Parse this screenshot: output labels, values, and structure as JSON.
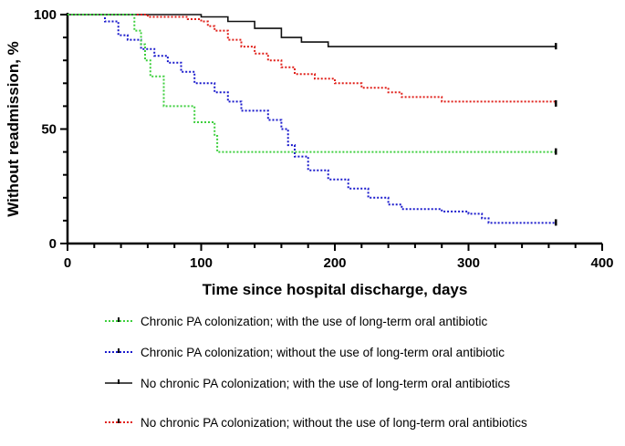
{
  "chart_data": {
    "type": "line",
    "title": "",
    "xlabel": "Time since hospital discharge, days",
    "ylabel": "Without readmission, %",
    "xlim": [
      0,
      400
    ],
    "ylim": [
      0,
      100
    ],
    "xticks": [
      0,
      100,
      200,
      300,
      400
    ],
    "yticks": [
      0,
      50,
      100
    ],
    "grid": false,
    "legend_position": "bottom",
    "series": [
      {
        "name": "Chronic PA colonization; with the use of long-term oral antibiotic",
        "color": "#3ecf3e",
        "style": "dotted",
        "x": [
          0,
          35,
          50,
          55,
          58,
          62,
          72,
          95,
          110,
          112,
          113,
          365
        ],
        "y": [
          100,
          100,
          93,
          87,
          80,
          73,
          60,
          53,
          47,
          40,
          40,
          40
        ]
      },
      {
        "name": "Chronic PA colonization; without the use of long-term oral antibiotic",
        "color": "#1a1acc",
        "style": "dotted",
        "x": [
          0,
          28,
          38,
          45,
          55,
          65,
          75,
          85,
          95,
          110,
          120,
          130,
          150,
          160,
          165,
          170,
          180,
          195,
          210,
          225,
          240,
          250,
          280,
          300,
          310,
          315,
          365
        ],
        "y": [
          100,
          97,
          91,
          89,
          85,
          82,
          79,
          75,
          70,
          66,
          62,
          58,
          54,
          50,
          43,
          38,
          32,
          28,
          24,
          20,
          17,
          15,
          14,
          13,
          11,
          9,
          9
        ]
      },
      {
        "name": "No chronic PA colonization; with the use of long-term oral antibiotics",
        "color": "#111111",
        "style": "solid",
        "x": [
          0,
          100,
          120,
          140,
          160,
          175,
          195,
          365
        ],
        "y": [
          100,
          99,
          97,
          94,
          90,
          88,
          86,
          86
        ]
      },
      {
        "name": "No chronic PA colonization; without the use of long-term oral antibiotics",
        "color": "#e0201a",
        "style": "dotted",
        "x": [
          0,
          60,
          90,
          100,
          105,
          110,
          120,
          130,
          140,
          150,
          160,
          170,
          185,
          200,
          220,
          240,
          250,
          280,
          310,
          340,
          365
        ],
        "y": [
          100,
          99,
          98,
          97,
          95,
          93,
          89,
          86,
          83,
          80,
          77,
          74,
          72,
          70,
          68,
          66,
          64,
          62,
          62,
          62,
          61
        ]
      }
    ]
  }
}
